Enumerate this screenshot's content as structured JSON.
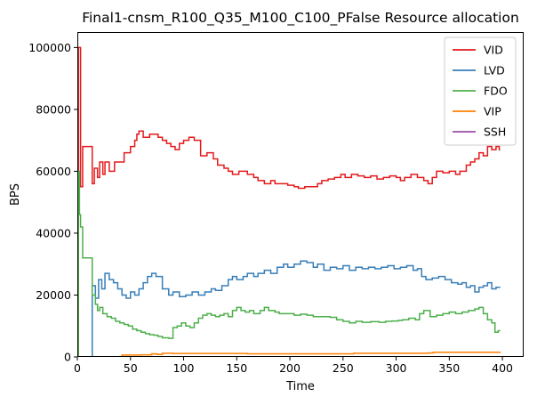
{
  "chart_data": {
    "type": "line",
    "title": "Final1-cnsm_R100_Q35_M100_C100_PFalse Resource allocation",
    "xlabel": "Time",
    "ylabel": "BPS",
    "xlim": [
      0,
      420
    ],
    "ylim": [
      0,
      105000
    ],
    "x_ticks": [
      0,
      50,
      100,
      150,
      200,
      250,
      300,
      350,
      400
    ],
    "y_ticks": [
      0,
      20000,
      40000,
      60000,
      80000,
      100000
    ],
    "grid": false,
    "legend_position": "top-right",
    "step": "post",
    "series": [
      {
        "name": "VID",
        "color": "#e41a1c",
        "points": [
          [
            0,
            0
          ],
          [
            1,
            100000
          ],
          [
            3,
            55000
          ],
          [
            5,
            68000
          ],
          [
            14,
            56000
          ],
          [
            16,
            61000
          ],
          [
            19,
            58000
          ],
          [
            21,
            63000
          ],
          [
            24,
            59000
          ],
          [
            26,
            63000
          ],
          [
            30,
            60000
          ],
          [
            35,
            63000
          ],
          [
            44,
            66000
          ],
          [
            50,
            68000
          ],
          [
            54,
            70000
          ],
          [
            56,
            72000
          ],
          [
            58,
            73000
          ],
          [
            62,
            71000
          ],
          [
            68,
            72000
          ],
          [
            76,
            71000
          ],
          [
            80,
            70000
          ],
          [
            84,
            69000
          ],
          [
            88,
            68000
          ],
          [
            92,
            67000
          ],
          [
            96,
            69000
          ],
          [
            100,
            70000
          ],
          [
            105,
            71000
          ],
          [
            110,
            70000
          ],
          [
            116,
            65000
          ],
          [
            122,
            66000
          ],
          [
            128,
            64000
          ],
          [
            132,
            62000
          ],
          [
            138,
            61000
          ],
          [
            142,
            60000
          ],
          [
            146,
            59000
          ],
          [
            152,
            60000
          ],
          [
            160,
            59000
          ],
          [
            166,
            58000
          ],
          [
            170,
            57000
          ],
          [
            176,
            56000
          ],
          [
            182,
            57000
          ],
          [
            186,
            56000
          ],
          [
            192,
            56000
          ],
          [
            198,
            55500
          ],
          [
            204,
            55000
          ],
          [
            208,
            54500
          ],
          [
            214,
            55000
          ],
          [
            220,
            55000
          ],
          [
            226,
            56000
          ],
          [
            230,
            57000
          ],
          [
            236,
            57500
          ],
          [
            242,
            58000
          ],
          [
            248,
            59000
          ],
          [
            252,
            58000
          ],
          [
            258,
            59000
          ],
          [
            264,
            58500
          ],
          [
            270,
            58000
          ],
          [
            276,
            58500
          ],
          [
            282,
            57500
          ],
          [
            288,
            58000
          ],
          [
            294,
            58500
          ],
          [
            300,
            58000
          ],
          [
            304,
            57000
          ],
          [
            308,
            58000
          ],
          [
            314,
            59000
          ],
          [
            320,
            58000
          ],
          [
            326,
            57000
          ],
          [
            330,
            56000
          ],
          [
            334,
            58000
          ],
          [
            338,
            60000
          ],
          [
            344,
            59500
          ],
          [
            350,
            60000
          ],
          [
            356,
            59000
          ],
          [
            360,
            60000
          ],
          [
            366,
            62000
          ],
          [
            370,
            63000
          ],
          [
            374,
            64000
          ],
          [
            378,
            66000
          ],
          [
            382,
            65000
          ],
          [
            386,
            68000
          ],
          [
            390,
            67000
          ],
          [
            394,
            68000
          ],
          [
            397,
            67000
          ],
          [
            398,
            67000
          ]
        ]
      },
      {
        "name": "LVD",
        "color": "#377eb8",
        "points": [
          [
            0,
            0
          ],
          [
            13,
            0
          ],
          [
            14,
            23000
          ],
          [
            17,
            19000
          ],
          [
            20,
            25000
          ],
          [
            23,
            22000
          ],
          [
            26,
            27000
          ],
          [
            30,
            25000
          ],
          [
            34,
            24000
          ],
          [
            38,
            22000
          ],
          [
            42,
            20000
          ],
          [
            46,
            19000
          ],
          [
            50,
            21000
          ],
          [
            54,
            20000
          ],
          [
            58,
            22000
          ],
          [
            62,
            24000
          ],
          [
            66,
            26000
          ],
          [
            70,
            27000
          ],
          [
            74,
            26000
          ],
          [
            80,
            22000
          ],
          [
            86,
            20000
          ],
          [
            90,
            21000
          ],
          [
            96,
            19500
          ],
          [
            102,
            20000
          ],
          [
            108,
            21000
          ],
          [
            114,
            20000
          ],
          [
            120,
            21000
          ],
          [
            126,
            22000
          ],
          [
            130,
            21500
          ],
          [
            136,
            23000
          ],
          [
            142,
            25000
          ],
          [
            146,
            26000
          ],
          [
            150,
            25000
          ],
          [
            156,
            26000
          ],
          [
            160,
            27000
          ],
          [
            166,
            26000
          ],
          [
            170,
            27000
          ],
          [
            176,
            28000
          ],
          [
            182,
            27000
          ],
          [
            188,
            29000
          ],
          [
            194,
            30000
          ],
          [
            198,
            29000
          ],
          [
            204,
            30000
          ],
          [
            210,
            31000
          ],
          [
            216,
            30500
          ],
          [
            222,
            29000
          ],
          [
            226,
            30000
          ],
          [
            232,
            28000
          ],
          [
            238,
            29000
          ],
          [
            244,
            28500
          ],
          [
            250,
            29500
          ],
          [
            256,
            28000
          ],
          [
            262,
            29000
          ],
          [
            268,
            28500
          ],
          [
            274,
            29000
          ],
          [
            280,
            28500
          ],
          [
            286,
            29000
          ],
          [
            292,
            29500
          ],
          [
            298,
            28500
          ],
          [
            304,
            29000
          ],
          [
            310,
            29500
          ],
          [
            316,
            28000
          ],
          [
            320,
            28500
          ],
          [
            324,
            26000
          ],
          [
            328,
            25000
          ],
          [
            334,
            25500
          ],
          [
            340,
            26000
          ],
          [
            346,
            25000
          ],
          [
            352,
            24000
          ],
          [
            358,
            23500
          ],
          [
            362,
            24000
          ],
          [
            366,
            22500
          ],
          [
            370,
            23000
          ],
          [
            374,
            21000
          ],
          [
            378,
            22500
          ],
          [
            382,
            23000
          ],
          [
            386,
            24000
          ],
          [
            390,
            22000
          ],
          [
            394,
            22500
          ],
          [
            398,
            22500
          ]
        ]
      },
      {
        "name": "FDO",
        "color": "#4daf4a",
        "points": [
          [
            0,
            0
          ],
          [
            1,
            60000
          ],
          [
            2,
            46000
          ],
          [
            3,
            42000
          ],
          [
            5,
            32000
          ],
          [
            13,
            32000
          ],
          [
            14,
            20000
          ],
          [
            17,
            17000
          ],
          [
            19,
            15000
          ],
          [
            21,
            16000
          ],
          [
            24,
            14000
          ],
          [
            28,
            13000
          ],
          [
            32,
            12500
          ],
          [
            36,
            11500
          ],
          [
            40,
            11000
          ],
          [
            44,
            10500
          ],
          [
            48,
            10000
          ],
          [
            52,
            9000
          ],
          [
            56,
            8500
          ],
          [
            60,
            8000
          ],
          [
            64,
            7500
          ],
          [
            68,
            7200
          ],
          [
            72,
            7000
          ],
          [
            76,
            6600
          ],
          [
            80,
            6200
          ],
          [
            86,
            6000
          ],
          [
            90,
            9500
          ],
          [
            94,
            10000
          ],
          [
            98,
            11000
          ],
          [
            102,
            10000
          ],
          [
            106,
            9500
          ],
          [
            110,
            11000
          ],
          [
            114,
            12500
          ],
          [
            118,
            13500
          ],
          [
            122,
            14000
          ],
          [
            126,
            13500
          ],
          [
            130,
            13000
          ],
          [
            134,
            13500
          ],
          [
            138,
            14000
          ],
          [
            142,
            13000
          ],
          [
            146,
            15000
          ],
          [
            150,
            16000
          ],
          [
            154,
            15000
          ],
          [
            158,
            14500
          ],
          [
            162,
            15000
          ],
          [
            166,
            14000
          ],
          [
            172,
            15000
          ],
          [
            176,
            16000
          ],
          [
            180,
            15000
          ],
          [
            186,
            14500
          ],
          [
            190,
            14000
          ],
          [
            196,
            14000
          ],
          [
            204,
            13500
          ],
          [
            210,
            13800
          ],
          [
            216,
            13500
          ],
          [
            222,
            13000
          ],
          [
            230,
            13000
          ],
          [
            238,
            12800
          ],
          [
            244,
            12000
          ],
          [
            250,
            11500
          ],
          [
            256,
            11000
          ],
          [
            262,
            11500
          ],
          [
            268,
            11200
          ],
          [
            276,
            11400
          ],
          [
            284,
            11200
          ],
          [
            290,
            11500
          ],
          [
            296,
            11600
          ],
          [
            302,
            11800
          ],
          [
            306,
            12000
          ],
          [
            312,
            12500
          ],
          [
            318,
            12000
          ],
          [
            322,
            14000
          ],
          [
            326,
            15000
          ],
          [
            332,
            13000
          ],
          [
            338,
            13500
          ],
          [
            344,
            14000
          ],
          [
            350,
            14500
          ],
          [
            356,
            14000
          ],
          [
            362,
            14500
          ],
          [
            368,
            15000
          ],
          [
            374,
            15500
          ],
          [
            378,
            16000
          ],
          [
            382,
            14000
          ],
          [
            386,
            12000
          ],
          [
            390,
            11000
          ],
          [
            393,
            8000
          ],
          [
            396,
            8500
          ],
          [
            398,
            8500
          ]
        ]
      },
      {
        "name": "VIP",
        "color": "#ff7f00",
        "points": [
          [
            0,
            0
          ],
          [
            40,
            0
          ],
          [
            42,
            600
          ],
          [
            60,
            700
          ],
          [
            70,
            1000
          ],
          [
            75,
            800
          ],
          [
            80,
            1200
          ],
          [
            90,
            1100
          ],
          [
            100,
            1100
          ],
          [
            150,
            1100
          ],
          [
            160,
            1000
          ],
          [
            250,
            1000
          ],
          [
            260,
            1200
          ],
          [
            300,
            1200
          ],
          [
            330,
            1300
          ],
          [
            335,
            1500
          ],
          [
            390,
            1500
          ],
          [
            398,
            1600
          ]
        ]
      },
      {
        "name": "SSH",
        "color": "#984ea3",
        "points": [
          [
            0,
            0
          ],
          [
            398,
            0
          ]
        ]
      }
    ]
  }
}
